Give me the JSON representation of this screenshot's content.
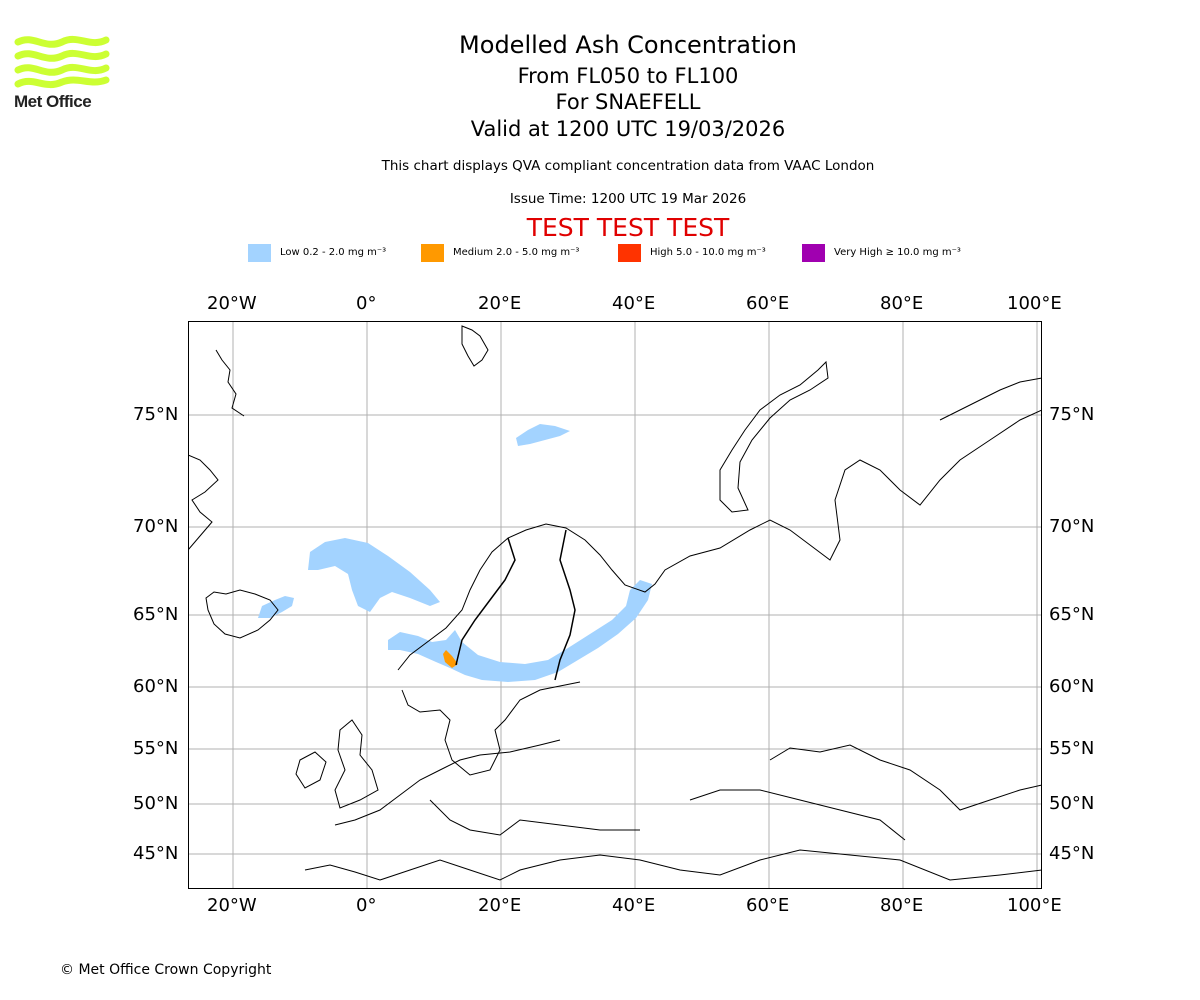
{
  "header": {
    "brand": "Met Office",
    "title": "Modelled Ash Concentration",
    "level_range": "From FL050 to FL100",
    "volcano_line": "For SNAEFELL",
    "valid_time": "Valid at 1200 UTC 19/03/2026",
    "description": "This chart displays QVA compliant concentration data from VAAC London",
    "issue_time": "Issue Time: 1200 UTC 19 Mar 2026",
    "test_banner": "TEST TEST TEST"
  },
  "legend": [
    {
      "label": "Low 0.2 - 2.0 mg m⁻³",
      "color": "#a3d3ff"
    },
    {
      "label": "Medium 2.0 - 5.0 mg m⁻³",
      "color": "#ff9900"
    },
    {
      "label": "High 5.0 - 10.0 mg m⁻³",
      "color": "#ff3300"
    },
    {
      "label": "Very High ≥ 10.0 mg m⁻³",
      "color": "#a000b0"
    }
  ],
  "axes": {
    "longitude_labels": [
      "20°W",
      "0°",
      "20°E",
      "40°E",
      "60°E",
      "80°E",
      "100°E"
    ],
    "latitude_labels": [
      "75°N",
      "70°N",
      "65°N",
      "60°N",
      "55°N",
      "50°N",
      "45°N"
    ]
  },
  "colors": {
    "grid": "#b0b0b0",
    "coast": "#000000",
    "ash_low": "#a3d3ff",
    "ash_medium": "#ff9900",
    "test": "#e00000"
  },
  "footer": {
    "copyright": "© Met Office Crown Copyright"
  }
}
